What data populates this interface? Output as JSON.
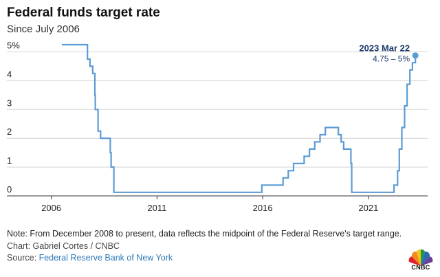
{
  "header": {
    "title": "Federal funds target rate",
    "subtitle": "Since July 2006"
  },
  "annotation": {
    "date": "2023 Mar 22",
    "value": "4.75 – 5%"
  },
  "footer": {
    "note": "Note: From December 2008 to present, data reflects the midpoint of the Federal Reserve's target range.",
    "credit": "Chart: Gabriel Cortes / CNBC",
    "source_prefix": "Source: ",
    "source_link": "Federal Reserve Bank of New York",
    "logo_text": "CNBC"
  },
  "colors": {
    "line": "#5b9bd5",
    "grid": "#d4d4d4",
    "axis": "#333333",
    "annotation": "#1d3a6b",
    "link": "#2f7ab8"
  },
  "chart_data": {
    "type": "line",
    "title": "Federal funds target rate",
    "subtitle": "Since July 2006",
    "xlabel": "",
    "ylabel": "",
    "xlim": [
      2005.2,
      2023.8
    ],
    "ylim": [
      0,
      5.25
    ],
    "x_ticks": [
      {
        "value": 2006,
        "label": "2006"
      },
      {
        "value": 2011,
        "label": "2011"
      },
      {
        "value": 2016,
        "label": "2016"
      },
      {
        "value": 2021,
        "label": "2021"
      }
    ],
    "y_ticks": [
      {
        "value": 0,
        "label": "0"
      },
      {
        "value": 1,
        "label": "1"
      },
      {
        "value": 2,
        "label": "2"
      },
      {
        "value": 3,
        "label": "3"
      },
      {
        "value": 4,
        "label": "4"
      },
      {
        "value": 5,
        "label": "5%"
      }
    ],
    "grid": "horizontal",
    "step": true,
    "series": [
      {
        "x": [
          2006.5,
          2007.71,
          2007.83,
          2007.96,
          2008.06,
          2008.08,
          2008.21,
          2008.33,
          2008.79,
          2008.83,
          2008.96,
          2015.96,
          2016.96,
          2017.21,
          2017.46,
          2017.96,
          2018.21,
          2018.46,
          2018.71,
          2018.96,
          2019.58,
          2019.71,
          2019.83,
          2020.17,
          2020.21,
          2022.21,
          2022.38,
          2022.46,
          2022.58,
          2022.71,
          2022.83,
          2022.96,
          2023.08,
          2023.22
        ],
        "y": [
          5.25,
          4.75,
          4.5,
          4.25,
          3.5,
          3.0,
          2.25,
          2.0,
          1.5,
          1.0,
          0.125,
          0.375,
          0.625,
          0.875,
          1.125,
          1.375,
          1.625,
          1.875,
          2.125,
          2.375,
          2.125,
          1.875,
          1.625,
          1.125,
          0.125,
          0.375,
          0.875,
          1.625,
          2.375,
          3.125,
          3.875,
          4.375,
          4.625,
          4.875
        ]
      }
    ],
    "highlight": {
      "x": 2023.22,
      "y": 4.875,
      "label": "2023 Mar 22",
      "value_label": "4.75 – 5%"
    }
  }
}
